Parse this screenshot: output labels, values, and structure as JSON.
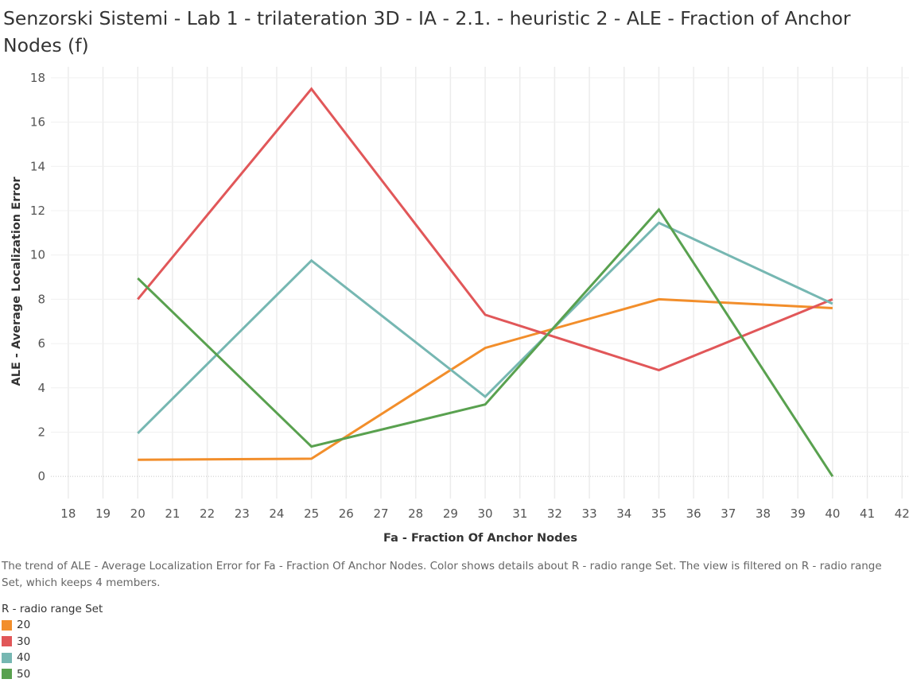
{
  "title": "Senzorski Sistemi - Lab 1 - trilateration 3D - IA - 2.1. - heuristic 2 - ALE - Fraction of Anchor Nodes (f)",
  "caption": "The trend  of ALE - Average Localization Error for Fa - Fraction Of Anchor Nodes.  Color shows details about R - radio range Set. The view is filtered on R - radio range Set, which keeps 4 members.",
  "legend": {
    "title": "R - radio range Set",
    "items": [
      {
        "label": "20",
        "color": "#f28e2b"
      },
      {
        "label": "30",
        "color": "#e15759"
      },
      {
        "label": "40",
        "color": "#76b7b2"
      },
      {
        "label": "50",
        "color": "#59a14f"
      }
    ]
  },
  "chart_data": {
    "type": "line",
    "xlabel": "Fa - Fraction Of Anchor Nodes",
    "ylabel": "ALE - Average Localization Error",
    "xlim": [
      17.5,
      42.2
    ],
    "ylim": [
      -1,
      18.5
    ],
    "x_ticks": [
      18,
      19,
      20,
      21,
      22,
      23,
      24,
      25,
      26,
      27,
      28,
      29,
      30,
      31,
      32,
      33,
      34,
      35,
      36,
      37,
      38,
      39,
      40,
      41,
      42
    ],
    "y_ticks": [
      0,
      2,
      4,
      6,
      8,
      10,
      12,
      14,
      16,
      18
    ],
    "grid": true,
    "legend_position": "bottom-left",
    "x": [
      20,
      25,
      30,
      35,
      40
    ],
    "series": [
      {
        "name": "20",
        "color": "#f28e2b",
        "values": [
          0.75,
          0.8,
          5.8,
          8.0,
          7.6
        ]
      },
      {
        "name": "30",
        "color": "#e15759",
        "values": [
          8.0,
          17.5,
          7.3,
          4.8,
          8.0
        ]
      },
      {
        "name": "40",
        "color": "#76b7b2",
        "values": [
          1.95,
          9.75,
          3.6,
          11.45,
          7.8
        ]
      },
      {
        "name": "50",
        "color": "#59a14f",
        "values": [
          8.95,
          1.35,
          3.25,
          12.05,
          0.0
        ]
      }
    ]
  }
}
